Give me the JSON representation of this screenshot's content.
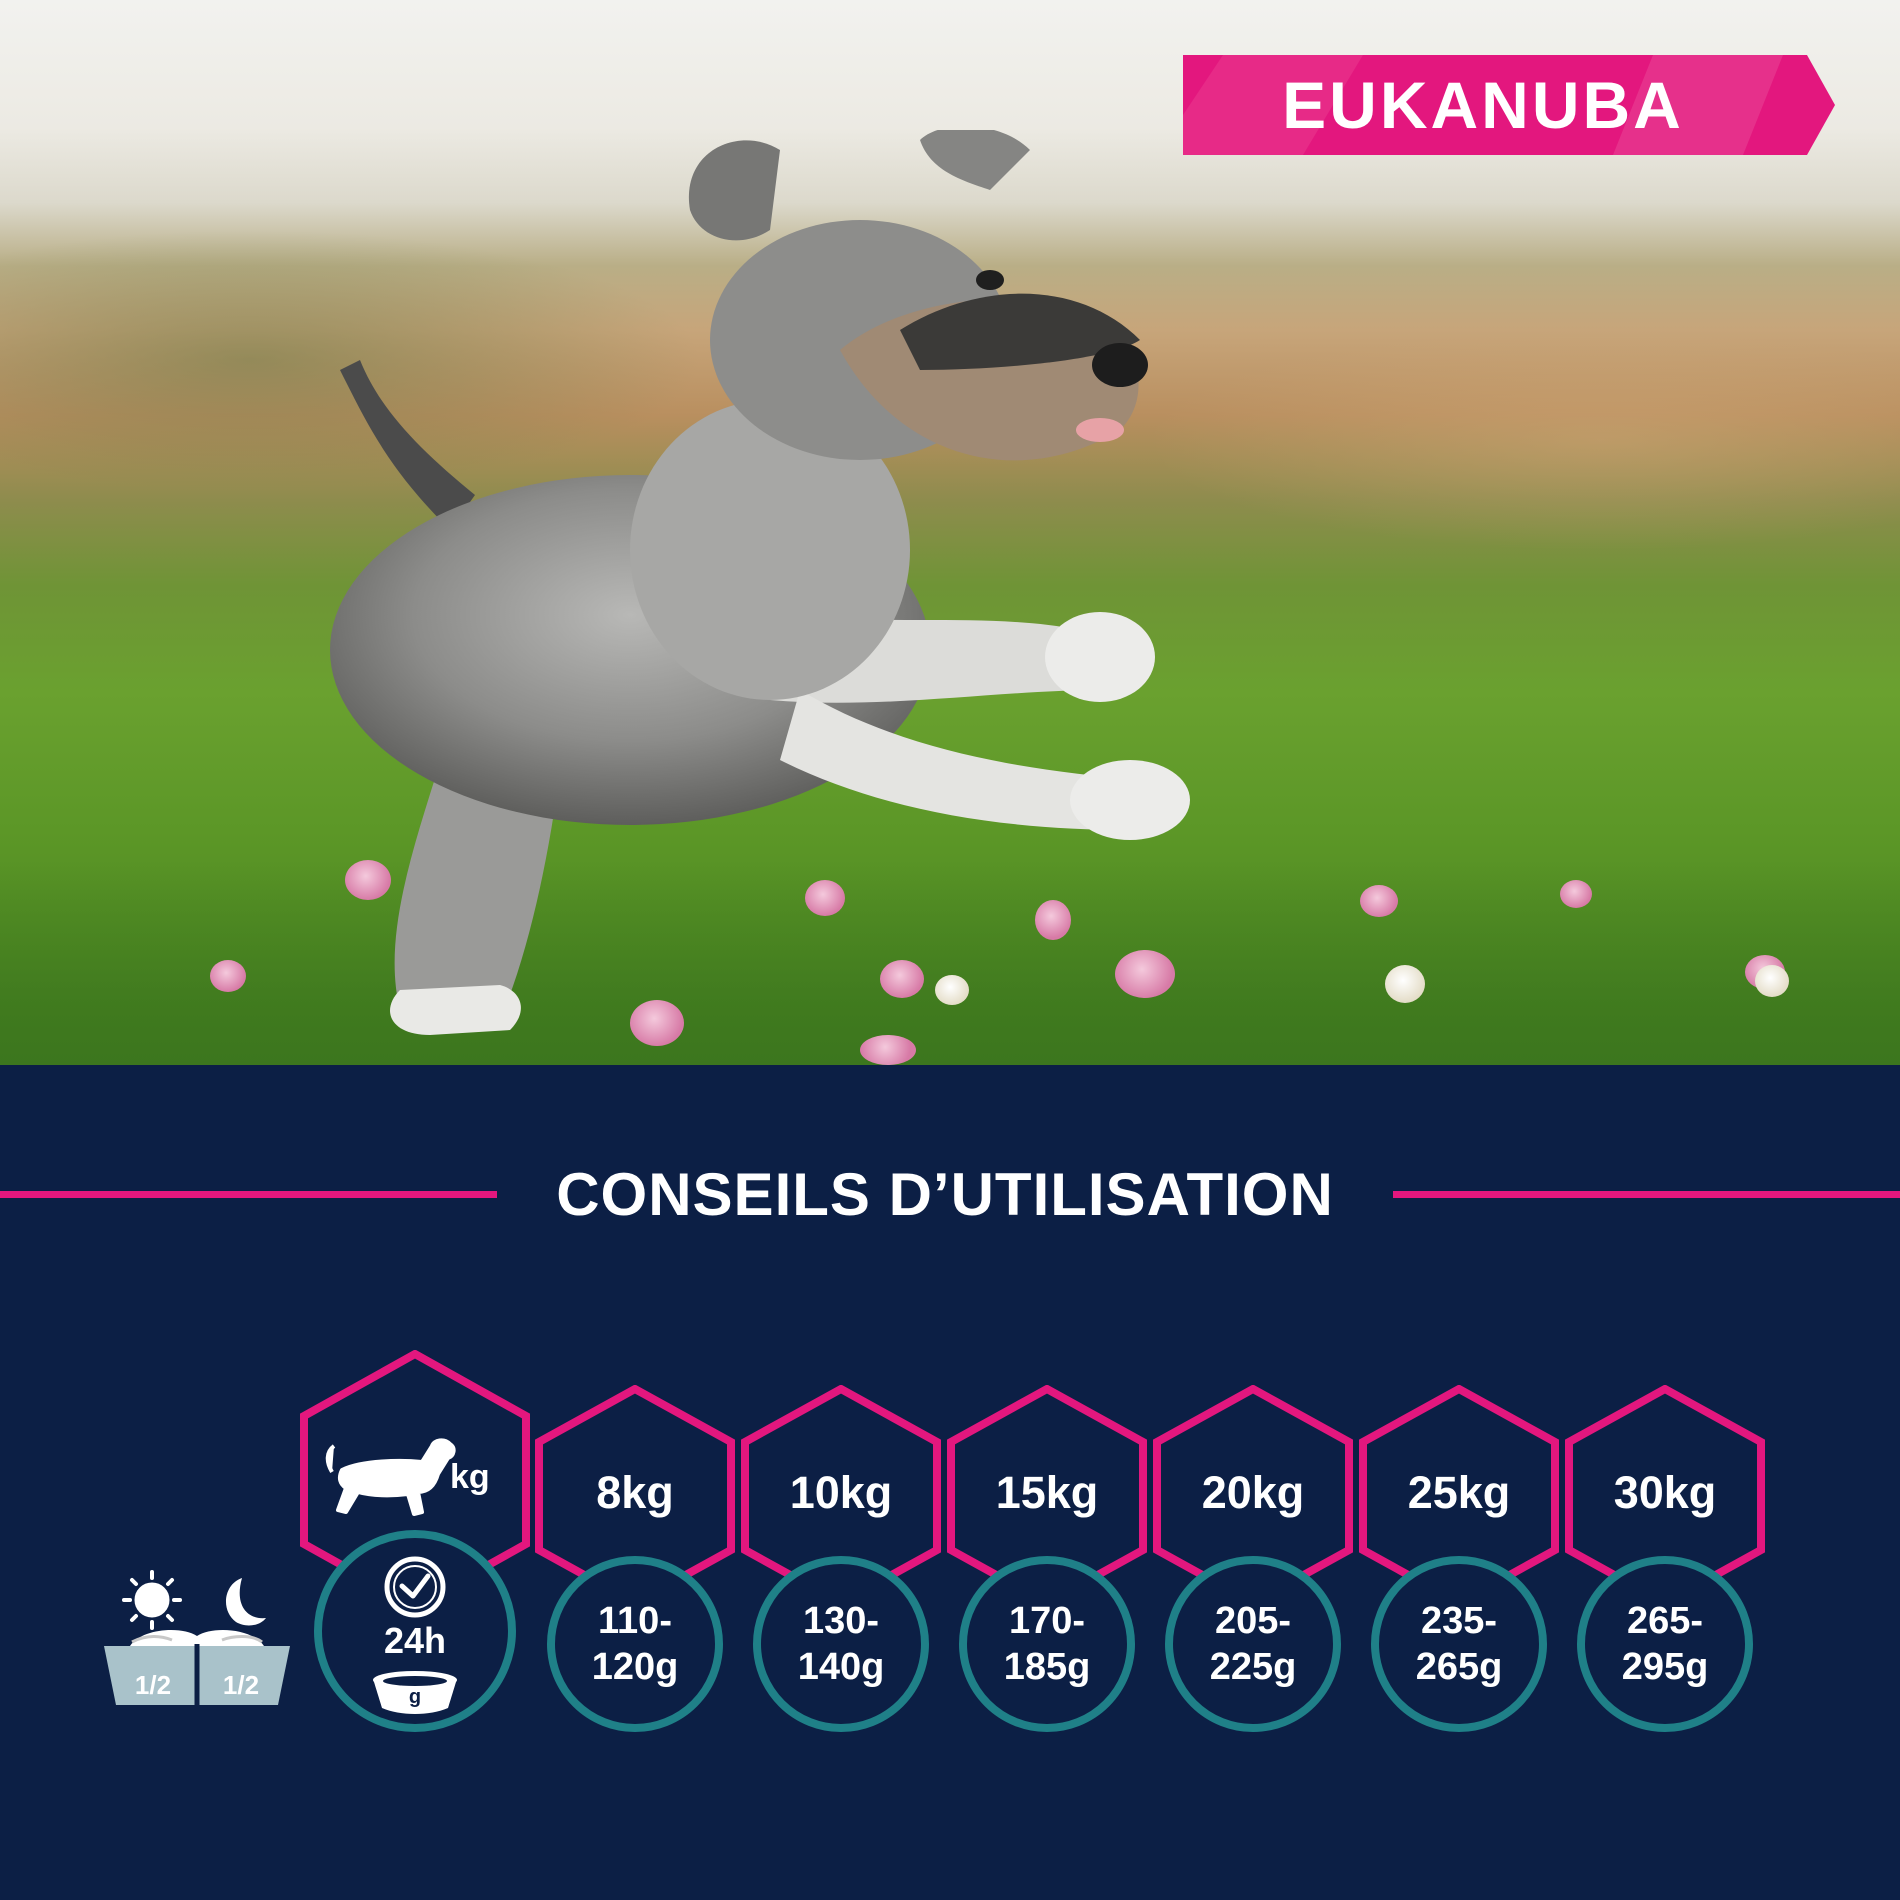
{
  "brand": {
    "logo_text": "EUKANUBA",
    "colors": {
      "pink": "#e3177e",
      "navy": "#0c1f45",
      "teal": "#1f8088"
    }
  },
  "hero": {
    "image_subject": "running-schnauzer-dog-in-meadow"
  },
  "section": {
    "title": "CONSEILS D’UTILISATION"
  },
  "feeding_table": {
    "header": {
      "weight_unit": "kg",
      "icon": "dog-icon",
      "daily_label": "24h",
      "bowl_unit": "g"
    },
    "split": {
      "morning_fraction": "1/2",
      "evening_fraction": "1/2",
      "icons": [
        "sun-icon",
        "moon-icon",
        "food-bowl-icon"
      ]
    },
    "columns": [
      {
        "weight": "8kg",
        "amount_line1": "110-",
        "amount_line2": "120g"
      },
      {
        "weight": "10kg",
        "amount_line1": "130-",
        "amount_line2": "140g"
      },
      {
        "weight": "15kg",
        "amount_line1": "170-",
        "amount_line2": "185g"
      },
      {
        "weight": "20kg",
        "amount_line1": "205-",
        "amount_line2": "225g"
      },
      {
        "weight": "25kg",
        "amount_line1": "235-",
        "amount_line2": "265g"
      },
      {
        "weight": "30kg",
        "amount_line1": "265-",
        "amount_line2": "295g"
      }
    ]
  }
}
